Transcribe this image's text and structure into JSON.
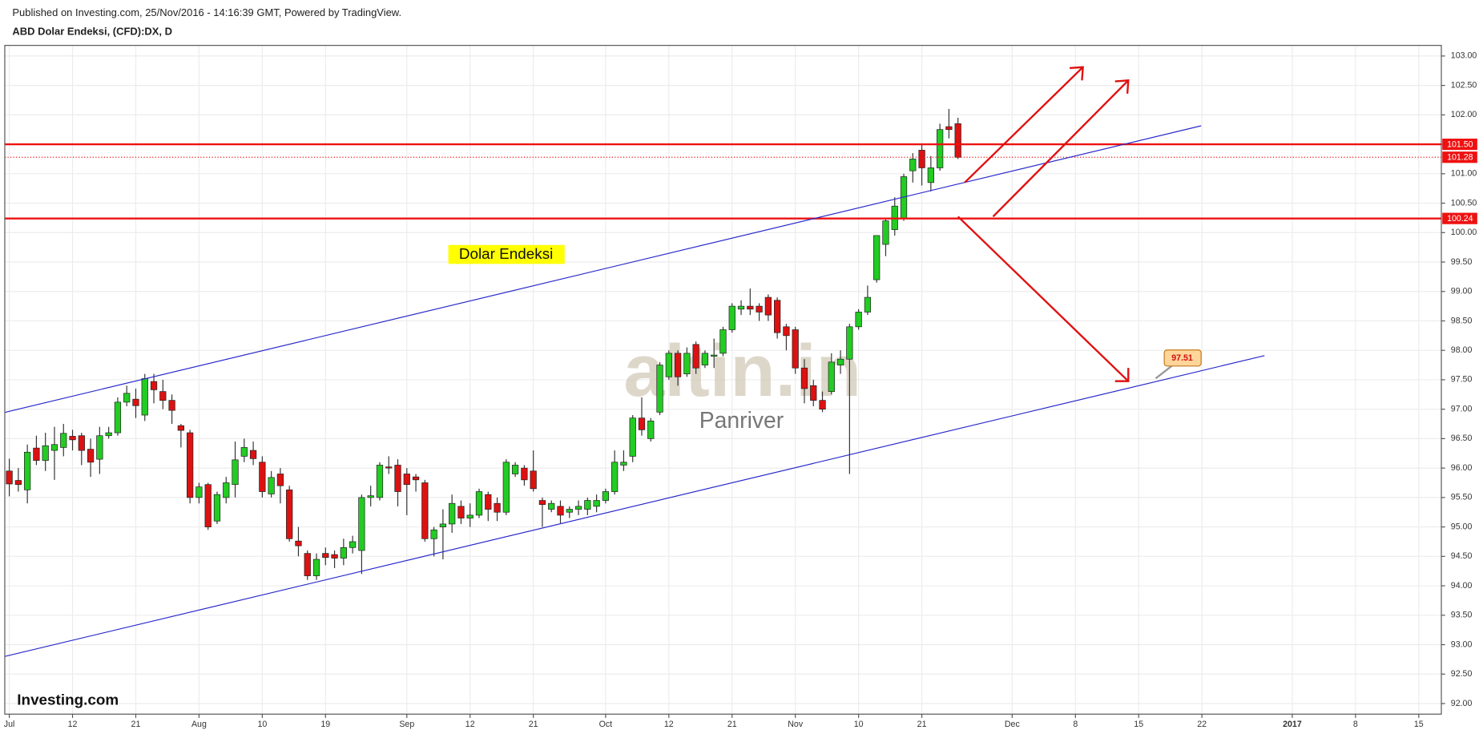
{
  "chart_data": {
    "type": "candlestick",
    "subtitle": "Published on Investing.com, 25/Nov/2016 - 14:16:39 GMT, Powered by TradingView.",
    "title": "ABD Dolar Endeksi, (CFD):DX, D",
    "categories": [
      "Jul",
      null,
      null,
      null,
      null,
      null,
      null,
      "12",
      null,
      null,
      null,
      null,
      null,
      null,
      "21",
      null,
      null,
      null,
      null,
      null,
      null,
      "Aug",
      null,
      null,
      null,
      null,
      null,
      null,
      "10",
      null,
      null,
      null,
      null,
      null,
      null,
      "19",
      null,
      null,
      null,
      null,
      null,
      null,
      null,
      null,
      "Sep",
      null,
      null,
      null,
      null,
      null,
      null,
      "12",
      null,
      null,
      null,
      null,
      null,
      null,
      "21",
      null,
      null,
      null,
      null,
      null,
      null,
      null,
      "Oct",
      null,
      null,
      null,
      null,
      null,
      null,
      "12",
      null,
      null,
      null,
      null,
      null,
      null,
      "21",
      null,
      null,
      null,
      null,
      null,
      null,
      "Nov",
      null,
      null,
      null,
      null,
      null,
      null,
      "10",
      null,
      null,
      null,
      null,
      null,
      null,
      "21",
      null,
      null,
      null,
      null,
      null,
      null,
      null,
      null,
      null,
      "Dec",
      null,
      null,
      null,
      null,
      null,
      null,
      "8",
      null,
      null,
      null,
      null,
      null,
      null,
      "15",
      null,
      null,
      null,
      null,
      null,
      null,
      "22",
      null,
      null,
      null,
      null,
      null,
      null,
      null,
      null,
      null,
      "2017",
      null,
      null,
      null,
      null,
      null,
      null,
      "8",
      null,
      null,
      null,
      null,
      null,
      null,
      "15",
      null,
      null
    ],
    "open": [
      95.95,
      95.79,
      95.63,
      96.34,
      96.13,
      96.3,
      96.35,
      96.54,
      96.55,
      96.32,
      96.15,
      96.55,
      96.6,
      97.12,
      97.17,
      96.9,
      97.47,
      97.3,
      97.15,
      96.72,
      96.6,
      95.5,
      95.72,
      95.1,
      95.5,
      95.72,
      96.2,
      96.3,
      96.1,
      95.56,
      95.9,
      95.63,
      94.76,
      94.55,
      94.17,
      94.55,
      94.53,
      94.47,
      94.65,
      94.6,
      95.5,
      95.5,
      96.02,
      96.05,
      95.9,
      95.85,
      95.75,
      94.8,
      95.0,
      95.05,
      95.35,
      95.15,
      95.2,
      95.55,
      95.4,
      95.25,
      95.9,
      96.0,
      95.95,
      95.45,
      95.3,
      95.35,
      95.25,
      95.3,
      95.3,
      95.35,
      95.45,
      95.6,
      96.05,
      96.2,
      96.85,
      96.5,
      96.95,
      97.55,
      97.95,
      97.6,
      98.1,
      97.75,
      97.9,
      97.95,
      98.35,
      98.7,
      98.75,
      98.75,
      98.9,
      98.85,
      98.4,
      98.35,
      97.7,
      97.4,
      97.15,
      97.3,
      97.75,
      97.85,
      98.4,
      98.65,
      99.2,
      99.8,
      100.05,
      100.25,
      101.05,
      101.4,
      100.85,
      101.1,
      101.8,
      101.85,
      null,
      null,
      null,
      null,
      null,
      null,
      null,
      null,
      null,
      null,
      null,
      null,
      null,
      null,
      null,
      null,
      null,
      null,
      null,
      null,
      null,
      null,
      null,
      null,
      null,
      null,
      null,
      null,
      null,
      null,
      null,
      null,
      null,
      null,
      null,
      null,
      null,
      null,
      null,
      null,
      null,
      null,
      null,
      null,
      null,
      null,
      null,
      null,
      null,
      null,
      null,
      null,
      null
    ],
    "high": [
      96.16,
      96.0,
      96.4,
      96.55,
      96.6,
      96.7,
      96.75,
      96.65,
      96.6,
      96.5,
      96.7,
      96.7,
      97.2,
      97.4,
      97.35,
      97.6,
      97.6,
      97.5,
      97.25,
      96.75,
      96.65,
      95.75,
      95.75,
      95.6,
      95.85,
      96.45,
      96.5,
      96.45,
      96.2,
      95.95,
      96.0,
      95.7,
      95.0,
      94.6,
      94.55,
      94.65,
      94.6,
      94.8,
      94.85,
      95.55,
      95.7,
      96.1,
      96.2,
      96.15,
      96.0,
      95.9,
      95.8,
      95.0,
      95.3,
      95.55,
      95.45,
      95.4,
      95.65,
      95.6,
      95.5,
      96.15,
      96.1,
      96.05,
      96.3,
      95.5,
      95.45,
      95.45,
      95.35,
      95.45,
      95.5,
      95.55,
      95.65,
      96.3,
      96.3,
      96.9,
      97.2,
      96.85,
      97.8,
      98.0,
      98.0,
      98.05,
      98.15,
      98.0,
      98.2,
      98.4,
      98.8,
      98.85,
      99.05,
      98.8,
      98.95,
      98.9,
      98.45,
      98.4,
      97.85,
      97.5,
      97.3,
      97.95,
      98.0,
      98.45,
      98.7,
      99.1,
      99.95,
      100.25,
      100.6,
      101.0,
      101.35,
      101.5,
      101.3,
      101.85,
      102.1,
      101.95,
      null,
      null,
      null,
      null,
      null,
      null,
      null,
      null,
      null,
      null,
      null,
      null,
      null,
      null,
      null,
      null,
      null,
      null,
      null,
      null,
      null,
      null,
      null,
      null,
      null,
      null,
      null,
      null,
      null,
      null,
      null,
      null,
      null,
      null,
      null,
      null,
      null,
      null,
      null,
      null,
      null,
      null,
      null,
      null,
      null,
      null,
      null,
      null,
      null,
      null,
      null,
      null,
      null
    ],
    "low": [
      95.52,
      95.6,
      95.4,
      96.05,
      95.95,
      95.8,
      96.2,
      96.3,
      96.05,
      95.85,
      95.9,
      96.5,
      96.55,
      97.05,
      96.85,
      96.8,
      97.1,
      97.0,
      96.75,
      96.35,
      95.4,
      95.4,
      94.95,
      95.05,
      95.4,
      95.5,
      96.1,
      96.05,
      95.5,
      95.5,
      95.4,
      94.75,
      94.5,
      94.1,
      94.1,
      94.35,
      94.3,
      94.35,
      94.55,
      94.2,
      95.35,
      95.45,
      95.9,
      95.35,
      95.2,
      95.6,
      94.75,
      94.5,
      94.45,
      94.9,
      95.05,
      95.0,
      95.15,
      95.1,
      95.1,
      95.2,
      95.85,
      95.7,
      95.6,
      95.0,
      95.25,
      95.05,
      95.15,
      95.2,
      95.2,
      95.25,
      95.4,
      95.55,
      95.95,
      96.1,
      96.55,
      96.45,
      96.9,
      97.5,
      97.4,
      97.55,
      97.6,
      97.7,
      97.7,
      97.9,
      98.3,
      98.6,
      98.6,
      98.5,
      98.5,
      98.2,
      98.0,
      97.6,
      97.1,
      97.05,
      96.95,
      97.25,
      97.6,
      95.9,
      98.35,
      98.6,
      99.15,
      99.6,
      99.95,
      100.2,
      100.85,
      100.8,
      100.7,
      101.05,
      101.6,
      101.25,
      null,
      null,
      null,
      null,
      null,
      null,
      null,
      null,
      null,
      null,
      null,
      null,
      null,
      null,
      null,
      null,
      null,
      null,
      null,
      null,
      null,
      null,
      null,
      null,
      null,
      null,
      null,
      null,
      null,
      null,
      null,
      null,
      null,
      null,
      null,
      null,
      null,
      null,
      null,
      null,
      null,
      null,
      null,
      null,
      null,
      null,
      null,
      null,
      null,
      null,
      null,
      null,
      null
    ],
    "close": [
      95.73,
      95.72,
      96.27,
      96.13,
      96.38,
      96.4,
      96.59,
      96.48,
      96.3,
      96.1,
      96.55,
      96.6,
      97.12,
      97.27,
      97.06,
      97.52,
      97.33,
      97.15,
      96.98,
      96.64,
      95.5,
      95.68,
      95.0,
      95.55,
      95.75,
      96.14,
      96.35,
      96.16,
      95.6,
      95.84,
      95.7,
      94.8,
      94.68,
      94.17,
      94.45,
      94.48,
      94.47,
      94.65,
      94.75,
      95.5,
      95.53,
      96.05,
      96.0,
      95.6,
      95.72,
      95.8,
      94.8,
      94.95,
      95.05,
      95.4,
      95.15,
      95.2,
      95.6,
      95.3,
      95.25,
      96.1,
      96.05,
      95.8,
      95.65,
      95.38,
      95.4,
      95.2,
      95.3,
      95.35,
      95.45,
      95.45,
      95.6,
      96.1,
      96.1,
      96.85,
      96.65,
      96.8,
      97.75,
      97.95,
      97.55,
      97.95,
      97.7,
      97.95,
      97.92,
      98.35,
      98.75,
      98.75,
      98.7,
      98.65,
      98.6,
      98.3,
      98.25,
      97.7,
      97.35,
      97.15,
      97.0,
      97.8,
      97.85,
      98.4,
      98.65,
      98.9,
      99.95,
      100.2,
      100.45,
      100.95,
      101.25,
      101.1,
      101.1,
      101.75,
      101.75,
      101.28,
      null,
      null,
      null,
      null,
      null,
      null,
      null,
      null,
      null,
      null,
      null,
      null,
      null,
      null,
      null,
      null,
      null,
      null,
      null,
      null,
      null,
      null,
      null,
      null,
      null,
      null,
      null,
      null,
      null,
      null,
      null,
      null,
      null,
      null,
      null,
      null,
      null,
      null,
      null,
      null,
      null,
      null,
      null,
      null,
      null,
      null,
      null,
      null,
      null,
      null,
      null,
      null,
      null
    ],
    "up_color": "#22cc22",
    "down_color": "#dd1111",
    "ylim": [
      91.82,
      103.18
    ],
    "yticks": [
      {
        "value": 92,
        "label": "92.00"
      },
      {
        "value": 92.5,
        "label": "92.50"
      },
      {
        "value": 93,
        "label": "93.00"
      },
      {
        "value": 93.5,
        "label": "93.50"
      },
      {
        "value": 94,
        "label": "94.00"
      },
      {
        "value": 94.5,
        "label": "94.50"
      },
      {
        "value": 95,
        "label": "95.00"
      },
      {
        "value": 95.5,
        "label": "95.50"
      },
      {
        "value": 96,
        "label": "96.00"
      },
      {
        "value": 96.5,
        "label": "96.50"
      },
      {
        "value": 97,
        "label": "97.00"
      },
      {
        "value": 97.5,
        "label": "97.50"
      },
      {
        "value": 98,
        "label": "98.00"
      },
      {
        "value": 98.5,
        "label": "98.50"
      },
      {
        "value": 99,
        "label": "99.00"
      },
      {
        "value": 99.5,
        "label": "99.50"
      },
      {
        "value": 100,
        "label": "100.00"
      },
      {
        "value": 100.5,
        "label": "100.50"
      },
      {
        "value": 101,
        "label": "101.00"
      },
      {
        "value": 101.5,
        "label": "101.50"
      },
      {
        "value": 102,
        "label": "102.00"
      },
      {
        "value": 102.5,
        "label": "102.50"
      },
      {
        "value": 103,
        "label": "103.00"
      }
    ],
    "grid": true,
    "hlines": [
      {
        "value": 101.5,
        "label": "101.50"
      },
      {
        "value": 100.24,
        "label": "100.24"
      }
    ],
    "hline_color": "#ee1111",
    "last_price": {
      "value": 101.28,
      "label": "101.28"
    },
    "callout": {
      "value": 97.51,
      "label": "97.51"
    },
    "annotation": "Dolar Endeksi",
    "watermark": "altin.in",
    "watermark_sub": "Panriver",
    "logo": "Investing.com"
  }
}
